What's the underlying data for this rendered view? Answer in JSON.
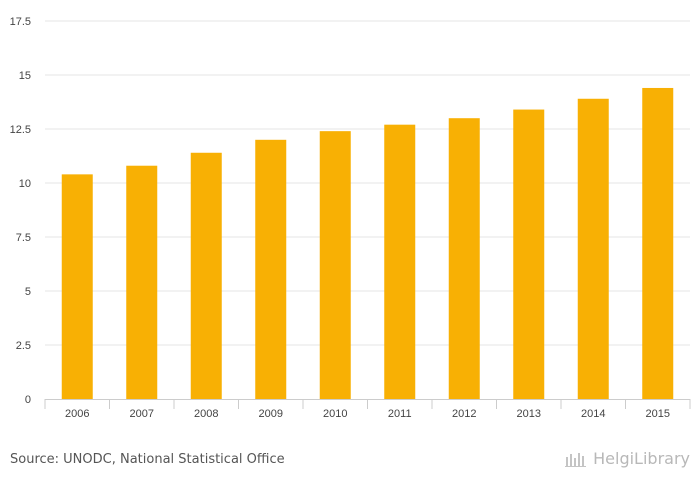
{
  "chart_data": {
    "type": "bar",
    "categories": [
      "2006",
      "2007",
      "2008",
      "2009",
      "2010",
      "2011",
      "2012",
      "2013",
      "2014",
      "2015"
    ],
    "values": [
      10.4,
      10.8,
      11.4,
      12.0,
      12.4,
      12.7,
      13.0,
      13.4,
      13.9,
      14.4
    ],
    "ylim": [
      0,
      17.5
    ],
    "yticks": [
      "0",
      "2.5",
      "5",
      "7.5",
      "10",
      "12.5",
      "15",
      "17.5"
    ],
    "grid": true,
    "bar_color": "#f8b004"
  },
  "footer": {
    "source": "Source: UNODC, National Statistical Office",
    "brand": "HelgiLibrary"
  }
}
